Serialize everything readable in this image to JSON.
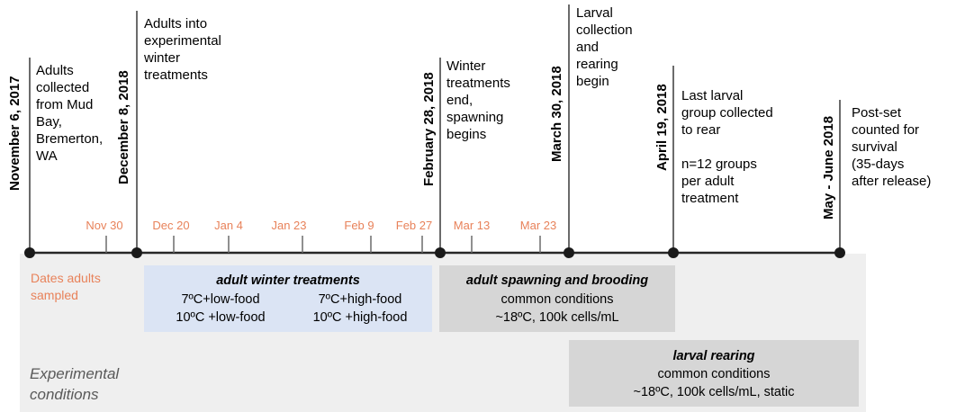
{
  "colors": {
    "axis": "#262626",
    "stem": "#6b6b6b",
    "orange": "#e8825a",
    "panel": "#efefef",
    "blue": "#dbe4f4",
    "gray_box": "#d6d6d6",
    "italic_gray": "#595959"
  },
  "events": [
    {
      "date": "November  6, 2017",
      "text": "Adults\ncollected\nfrom Mud\nBay,\nBremerton,\nWA"
    },
    {
      "date": "December 8, 2018",
      "text": "Adults into\nexperimental\nwinter\ntreatments"
    },
    {
      "date": "February 28, 2018",
      "text": "Winter\ntreatments\nend,\nspawning\nbegins"
    },
    {
      "date": "March 30, 2018",
      "text": "Larval\ncollection\nand\nrearing\nbegin"
    },
    {
      "date": "April 19, 2018",
      "text": "Last larval\ngroup collected\nto rear\n\nn=12 groups\nper adult\ntreatment"
    },
    {
      "date": "May - June 2018",
      "text": "Post-set\ncounted for\nsurvival\n(35-days\nafter release)"
    }
  ],
  "sample_dates": [
    "Nov 30",
    "Dec 20",
    "Jan 4",
    "Jan 23",
    "Feb 9",
    "Feb 27",
    "Mar 13",
    "Mar 23"
  ],
  "dates_sampled_label": "Dates adults\nsampled",
  "experimental_conditions_label": "Experimental\nconditions",
  "winter": {
    "title": "adult winter treatments",
    "left": [
      "7ºC+low-food",
      "10ºC +low-food"
    ],
    "right": [
      "7ºC+high-food",
      "10ºC +high-food"
    ]
  },
  "spawning": {
    "title": "adult spawning and brooding",
    "lines": [
      "common conditions",
      "~18ºC, 100k cells/mL"
    ]
  },
  "larval": {
    "title": "larval rearing",
    "lines": [
      "common conditions",
      "~18ºC, 100k cells/mL, static"
    ]
  }
}
